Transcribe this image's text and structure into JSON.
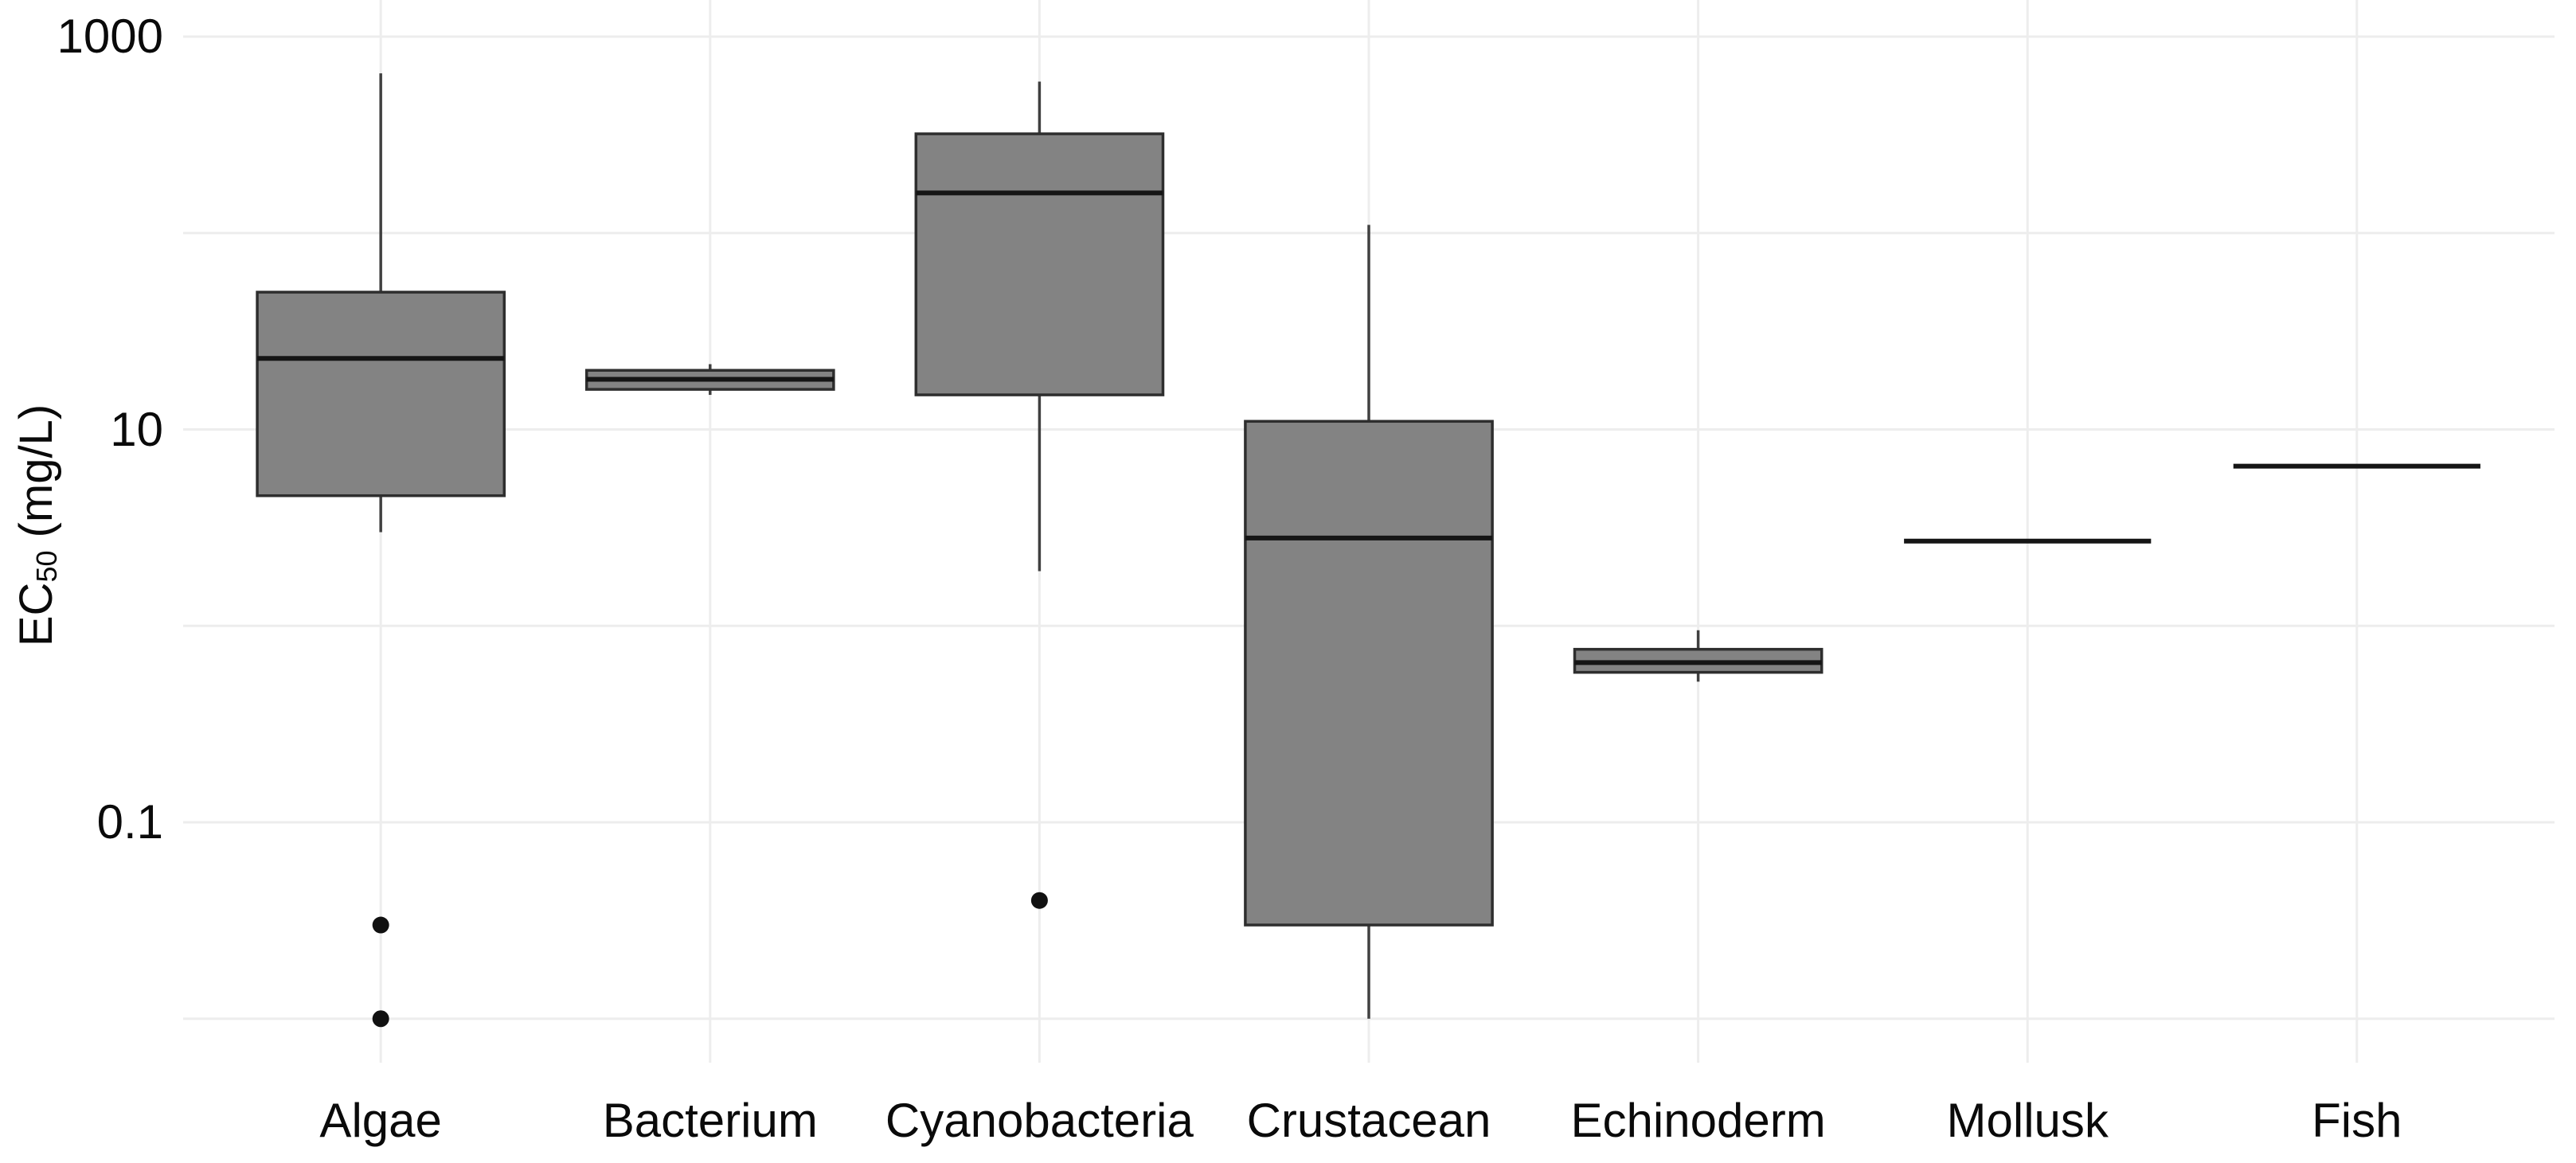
{
  "figure": {
    "background": "#ffffff",
    "ylabel_parts": {
      "prefix": "EC",
      "sub": "50",
      "suffix": " (mg/L)"
    }
  },
  "chart_data": {
    "type": "boxplot",
    "title": "",
    "xlabel": "",
    "ylabel": "EC50 (mg/L)",
    "yscale": "log",
    "ylim": [
      0.0063,
      1500
    ],
    "grid": "on",
    "legend": "none",
    "ytick_labels": [
      "1000",
      "10",
      "0.1"
    ],
    "ytick_values": [
      1000,
      10,
      0.1
    ],
    "ygridline_values": [
      1000,
      100,
      10,
      1,
      0.1,
      0.01
    ],
    "categories": [
      "Algae",
      "Bacterium",
      "Cyanobacteria",
      "Crustacean",
      "Echinoderm",
      "Mollusk",
      "Fish"
    ],
    "series": [
      {
        "name": "Algae",
        "whislo": 3.0,
        "q1": 4.6,
        "med": 23,
        "q3": 50,
        "whishi": 650,
        "outliers": [
          0.03,
          0.01
        ]
      },
      {
        "name": "Bacterium",
        "whislo": 15,
        "q1": 16,
        "med": 18,
        "q3": 20,
        "whishi": 21.5,
        "outliers": []
      },
      {
        "name": "Cyanobacteria",
        "whislo": 1.9,
        "q1": 15,
        "med": 160,
        "q3": 320,
        "whishi": 590,
        "outliers": [
          0.04
        ]
      },
      {
        "name": "Crustacean",
        "whislo": 0.01,
        "q1": 0.03,
        "med": 2.8,
        "q3": 11,
        "whishi": 110,
        "outliers": []
      },
      {
        "name": "Echinoderm",
        "whislo": 0.52,
        "q1": 0.58,
        "med": 0.65,
        "q3": 0.76,
        "whishi": 0.95,
        "outliers": []
      },
      {
        "name": "Mollusk",
        "whislo": 2.7,
        "q1": 2.7,
        "med": 2.7,
        "q3": 2.7,
        "whishi": 2.7,
        "outliers": []
      },
      {
        "name": "Fish",
        "whislo": 6.5,
        "q1": 6.5,
        "med": 6.5,
        "q3": 6.5,
        "whishi": 6.5,
        "outliers": []
      }
    ],
    "colors": {
      "box_fill": "#838383",
      "box_border": "#2e2e2e",
      "median": "#151515",
      "whisker": "#404040",
      "gridline": "#ededed",
      "outlier": "#111111",
      "text": "#0a0a0a"
    }
  }
}
